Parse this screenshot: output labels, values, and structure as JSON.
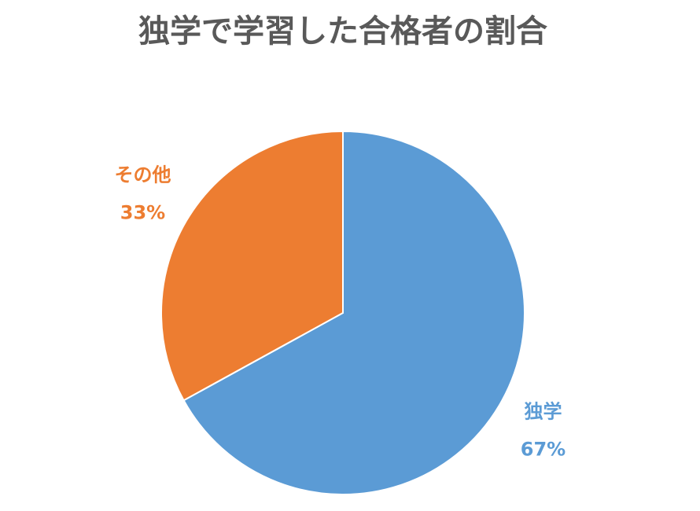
{
  "chart_data": {
    "type": "pie",
    "title": "独学で学習した合格者の割合",
    "categories": [
      "独学",
      "その他"
    ],
    "values": [
      67,
      33
    ],
    "value_labels": [
      "67%",
      "33%"
    ],
    "colors": [
      "#5b9bd5",
      "#ed7d31"
    ]
  }
}
